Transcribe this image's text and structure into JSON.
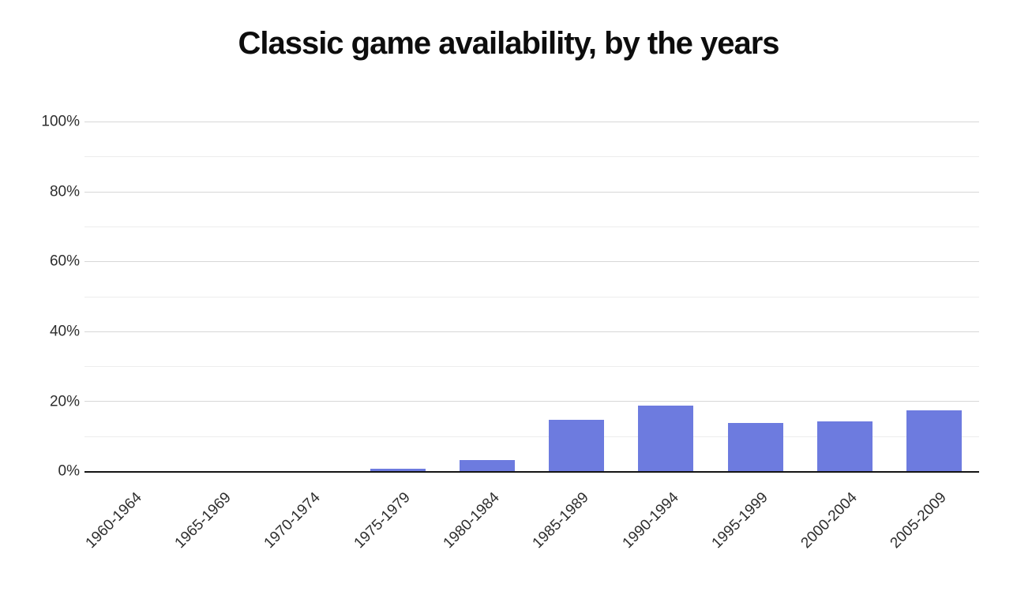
{
  "chart_data": {
    "type": "bar",
    "title": "Classic game availability, by the years",
    "categories": [
      "1960-1964",
      "1965-1969",
      "1970-1974",
      "1975-1979",
      "1980-1984",
      "1985-1989",
      "1990-1994",
      "1995-1999",
      "2000-2004",
      "2005-2009"
    ],
    "values": [
      0,
      0,
      0,
      1,
      3.5,
      15,
      19,
      14,
      14.5,
      17.5
    ],
    "value_unit": "%",
    "xlabel": "",
    "ylabel": "",
    "ylim": [
      0,
      100
    ],
    "y_tick_labels": [
      "0%",
      "20%",
      "40%",
      "60%",
      "80%",
      "100%"
    ],
    "y_major_step": 20,
    "y_minor_step": 10,
    "grid": "horizontal",
    "legend": "none",
    "x_label_rotation_deg": -45,
    "colors": {
      "bar": "#6d7bdf",
      "major_grid": "#d7d7d7",
      "minor_grid": "#ededed",
      "axis": "#141414",
      "title_text": "#0d0d0d",
      "tick_text": "#2e2e2e",
      "background": "#ffffff"
    }
  }
}
